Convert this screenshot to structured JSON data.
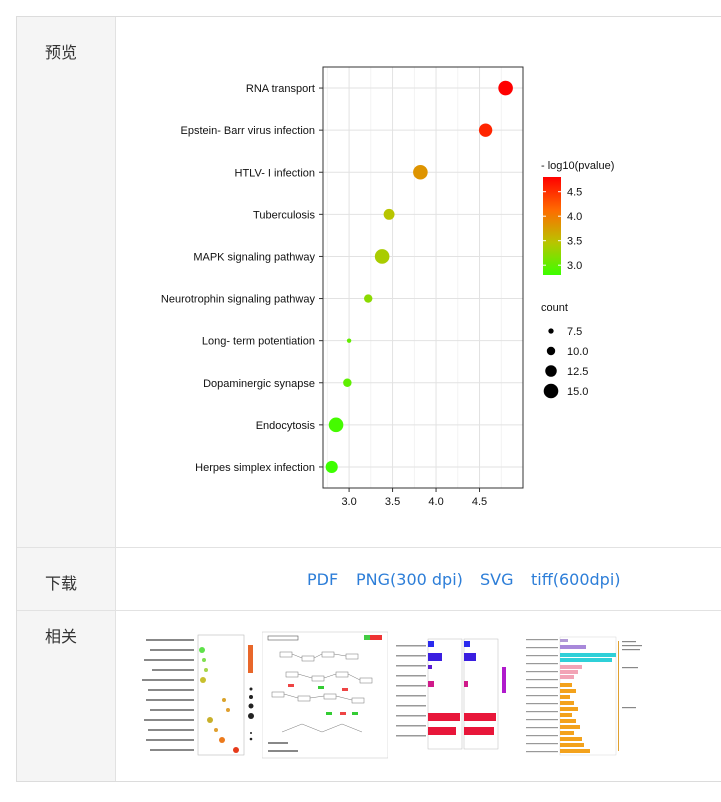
{
  "rows": {
    "preview_label": "预览",
    "download_label": "下载",
    "related_label": "相关"
  },
  "download": {
    "pdf": "PDF",
    "png": "PNG(300 dpi)",
    "svg": "SVG",
    "tiff": "tiff(600dpi)"
  },
  "chart_data": {
    "type": "scatter",
    "categories": [
      "RNA transport",
      "Epstein- Barr virus infection",
      "HTLV- I infection",
      "Tuberculosis",
      "MAPK signaling pathway",
      "Neurotrophin signaling pathway",
      "Long- term potentiation",
      "Dopaminergic synapse",
      "Endocytosis",
      "Herpes simplex infection"
    ],
    "x": [
      4.8,
      4.57,
      3.82,
      3.46,
      3.38,
      3.22,
      3.0,
      2.98,
      2.85,
      2.8
    ],
    "count": [
      15,
      14,
      15,
      12,
      15,
      10,
      6,
      10,
      15,
      13
    ],
    "neglog10_pvalue": [
      4.8,
      4.57,
      3.82,
      3.46,
      3.38,
      3.22,
      3.0,
      2.98,
      2.85,
      2.8
    ],
    "xlim": [
      2.7,
      5.0
    ],
    "xticks": [
      "3.0",
      "3.5",
      "4.0",
      "4.5"
    ],
    "xtick_values": [
      3.0,
      3.5,
      4.0,
      4.5
    ],
    "grid": true,
    "legend_color": {
      "title": "- log10(pvalue)",
      "ticks": [
        "4.5",
        "4.0",
        "3.5",
        "3.0"
      ],
      "tick_values": [
        4.5,
        4.0,
        3.5,
        3.0
      ],
      "range": [
        2.8,
        4.8
      ],
      "colors": [
        "#ff0000",
        "#ff6a00",
        "#b9c400",
        "#3cff00"
      ]
    },
    "legend_size": {
      "title": "count",
      "labels": [
        "7.5",
        "10.0",
        "12.5",
        "15.0"
      ],
      "values": [
        7.5,
        10.0,
        12.5,
        15.0
      ]
    }
  },
  "related": {
    "items": [
      "related-thumbnail-1",
      "related-thumbnail-2",
      "related-thumbnail-3",
      "related-thumbnail-4"
    ]
  }
}
